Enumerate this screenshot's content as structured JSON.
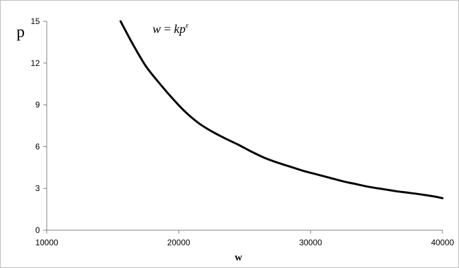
{
  "chart_data": {
    "type": "line",
    "title": "",
    "xlabel": "w",
    "ylabel": "p",
    "xlim": [
      10000,
      40000
    ],
    "ylim": [
      0,
      15
    ],
    "x_ticks": [
      "10000",
      "20000",
      "30000",
      "40000"
    ],
    "y_ticks": [
      "0",
      "3",
      "6",
      "9",
      "12",
      "15"
    ],
    "grid": false,
    "legend": "none",
    "annotation": {
      "lhs": "w",
      "eq": " = ",
      "rhs": "kp",
      "exp": "ε"
    },
    "line_color": "#000000",
    "series": [
      {
        "x": [
          15600,
          16500,
          17500,
          18500,
          19500,
          20500,
          21500,
          22500,
          23500,
          24500,
          25500,
          26500,
          27500,
          28500,
          29500,
          30500,
          31500,
          32500,
          33500,
          34500,
          35500,
          36500,
          37500,
          38500,
          39500,
          40000
        ],
        "values": [
          15.0,
          13.4,
          11.8,
          10.6,
          9.5,
          8.5,
          7.7,
          7.1,
          6.6,
          6.15,
          5.65,
          5.2,
          4.85,
          4.55,
          4.25,
          4.0,
          3.75,
          3.5,
          3.3,
          3.1,
          2.95,
          2.8,
          2.68,
          2.55,
          2.4,
          2.3
        ]
      }
    ]
  }
}
